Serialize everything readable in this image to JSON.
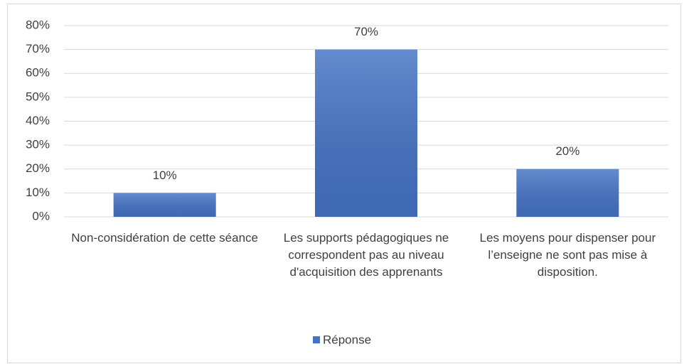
{
  "chart_data": {
    "type": "bar",
    "categories": [
      "Non-considération de cette séance",
      "Les supports pédagogiques ne correspondent pas au niveau d'acquisition des apprenants",
      "Les moyens pour dispenser pour l’enseigne ne sont pas mise à disposition."
    ],
    "series": [
      {
        "name": "Réponse",
        "color": "#4472c4",
        "values": [
          10,
          70,
          20
        ],
        "value_labels": [
          "10%",
          "70%",
          "20%"
        ]
      }
    ],
    "ylim": [
      0,
      80
    ],
    "yticks": [
      {
        "value": 0,
        "label": "0%"
      },
      {
        "value": 10,
        "label": "10%"
      },
      {
        "value": 20,
        "label": "20%"
      },
      {
        "value": 30,
        "label": "30%"
      },
      {
        "value": 40,
        "label": "40%"
      },
      {
        "value": 50,
        "label": "50%"
      },
      {
        "value": 60,
        "label": "60%"
      },
      {
        "value": 70,
        "label": "70%"
      },
      {
        "value": 80,
        "label": "80%"
      }
    ],
    "grid": true,
    "legend": "bottom"
  }
}
